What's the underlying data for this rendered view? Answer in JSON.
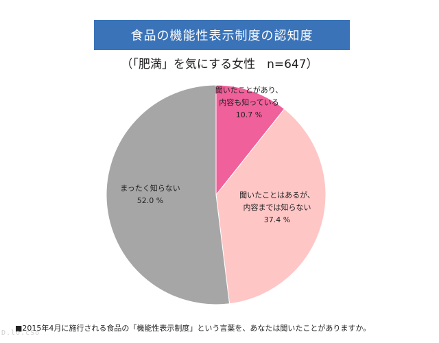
{
  "chart_data": {
    "type": "pie",
    "title": "食品の機能性表示制度の認知度",
    "subtitle": "（「肥満」を気にする女性　n=647）",
    "slices": [
      {
        "lines": [
          "聞いたことがあり、",
          "内容も知っている"
        ],
        "value_label": "10.7 %",
        "value": 10.7,
        "color": "#f0609a"
      },
      {
        "lines": [
          "聞いたことはあるが、",
          "内容までは知らない"
        ],
        "value_label": "37.4 %",
        "value": 37.4,
        "color": "#ffc6c6"
      },
      {
        "lines": [
          "まったく知らない"
        ],
        "value_label": "52.0 %",
        "value": 52.0,
        "color": "#a6a6a6"
      }
    ],
    "start": "12 o'clock",
    "direction": "clockwise"
  },
  "footnote": "■2015年4月に施行される食品の「機能性表示制度」という言葉を、あなたは聞いたことがありますか。"
}
